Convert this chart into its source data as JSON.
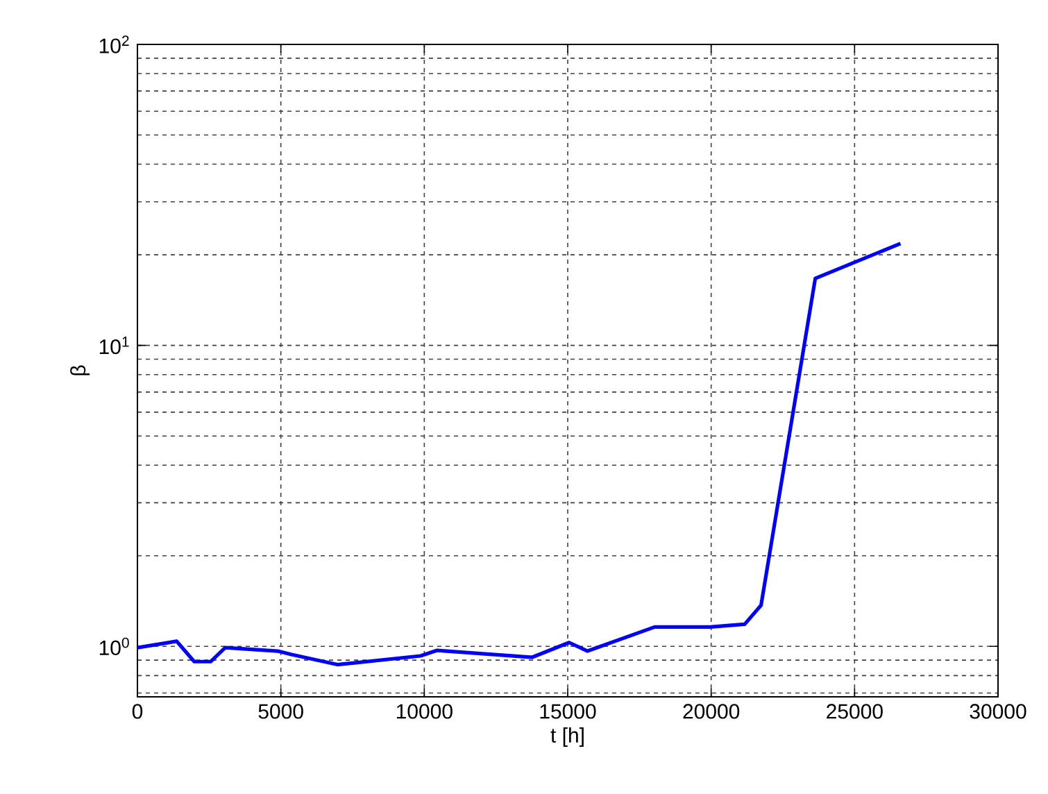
{
  "chart_data": {
    "type": "line",
    "xlabel": "t  [h]",
    "ylabel": "β",
    "x": [
      0,
      1370,
      1980,
      2550,
      3060,
      4890,
      5370,
      6970,
      9870,
      10450,
      13760,
      15050,
      15690,
      18030,
      19960,
      21170,
      21740,
      23630,
      26600
    ],
    "series": [
      {
        "color": "#0000ff",
        "values": [
          0.99,
          1.04,
          0.89,
          0.89,
          0.99,
          0.965,
          0.94,
          0.87,
          0.93,
          0.97,
          0.92,
          1.03,
          0.965,
          1.16,
          1.16,
          1.185,
          1.37,
          16.7,
          21.8
        ]
      }
    ],
    "xlim": [
      0,
      30000
    ],
    "ylim": [
      0.68,
      100
    ],
    "xticks": [
      0,
      5000,
      10000,
      15000,
      20000,
      25000,
      30000
    ],
    "yticks": [
      {
        "value": 1,
        "label": "10$^{0}$"
      },
      {
        "value": 10,
        "label": "10$^{1}$"
      },
      {
        "value": 100,
        "label": "10$^{2}$"
      }
    ],
    "log": "y",
    "grid": true
  }
}
